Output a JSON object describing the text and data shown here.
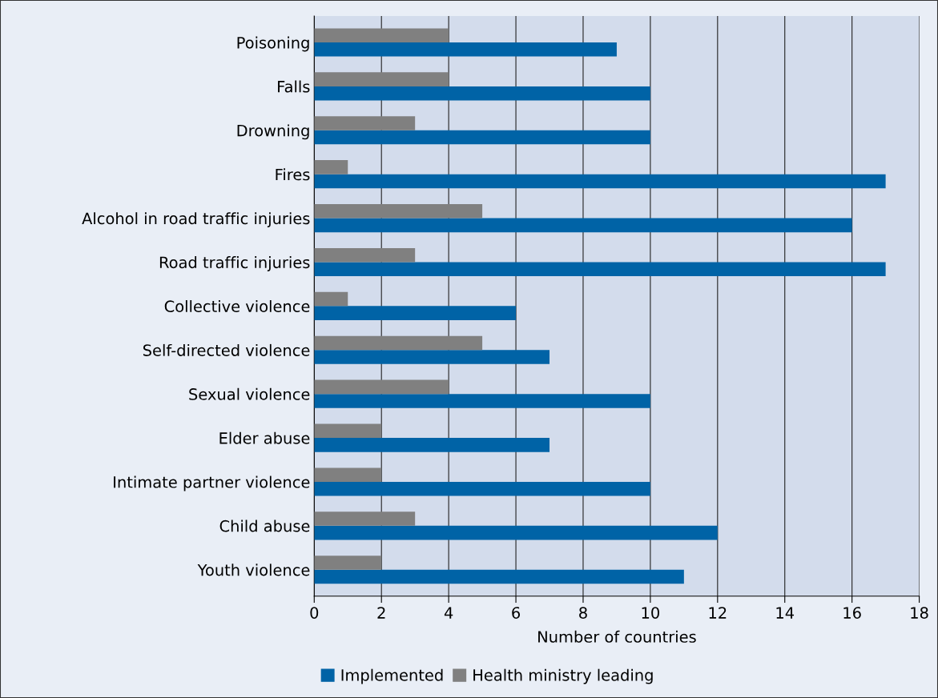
{
  "chart_data": {
    "type": "bar",
    "orientation": "horizontal",
    "xlabel": "Number of countries",
    "categories": [
      "Poisoning",
      "Falls",
      "Drowning",
      "Fires",
      "Alcohol in road traffic injuries",
      "Road traffic injuries",
      "Collective violence",
      "Self-directed violence",
      "Sexual violence",
      "Elder abuse",
      "Intimate partner violence",
      "Child abuse",
      "Youth violence"
    ],
    "series": [
      {
        "name": "Implemented",
        "color": "#0063a6",
        "values": [
          9,
          10,
          10,
          17,
          16,
          17,
          6,
          7,
          10,
          7,
          10,
          12,
          11
        ]
      },
      {
        "name": "Health ministry leading",
        "color": "#808080",
        "values": [
          4,
          4,
          3,
          1,
          5,
          3,
          1,
          5,
          4,
          2,
          2,
          3,
          2
        ]
      }
    ],
    "xlim": [
      0,
      18
    ],
    "xticks": [
      0,
      2,
      4,
      6,
      8,
      10,
      12,
      14,
      16,
      18
    ],
    "grid": "x",
    "legend": "bottom"
  }
}
